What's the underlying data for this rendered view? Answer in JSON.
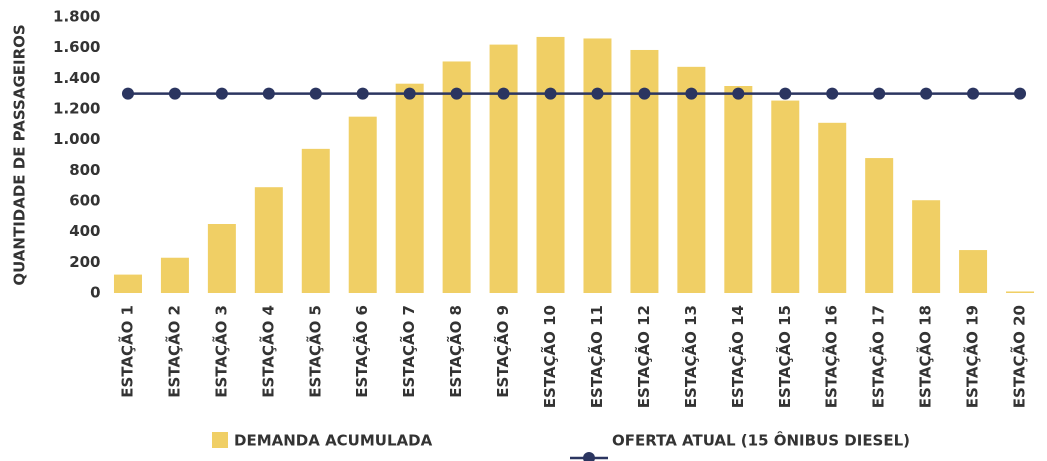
{
  "chart_data": {
    "type": "bar",
    "y_label": "QUANTIDADE DE PASSAGEIROS",
    "categories": [
      "ESTAÇÃO 1",
      "ESTAÇÃO 2",
      "ESTAÇÃO 3",
      "ESTAÇÃO 4",
      "ESTAÇÃO 5",
      "ESTAÇÃO 6",
      "ESTAÇÃO 7",
      "ESTAÇÃO 8",
      "ESTAÇÃO 9",
      "ESTAÇÃO 10",
      "ESTAÇÃO 11",
      "ESTAÇÃO 12",
      "ESTAÇÃO 13",
      "ESTAÇÃO 14",
      "ESTAÇÃO 15",
      "ESTAÇÃO 16",
      "ESTAÇÃO 17",
      "ESTAÇÃO 18",
      "ESTAÇÃO 19",
      "ESTAÇÃO 20"
    ],
    "series": [
      {
        "name": "DEMANDA ACUMULADA",
        "type": "bar",
        "color": "#f0cf65",
        "values": [
          120,
          230,
          450,
          690,
          940,
          1150,
          1365,
          1510,
          1620,
          1670,
          1660,
          1585,
          1475,
          1350,
          1255,
          1110,
          880,
          605,
          280,
          10
        ]
      },
      {
        "name": "OFERTA ATUAL (15 ÔNIBUS DIESEL)",
        "type": "line",
        "color": "#2b3560",
        "values": [
          1300,
          1300,
          1300,
          1300,
          1300,
          1300,
          1300,
          1300,
          1300,
          1300,
          1300,
          1300,
          1300,
          1300,
          1300,
          1300,
          1300,
          1300,
          1300,
          1300
        ]
      }
    ],
    "ylim": [
      0,
      1800
    ],
    "yticks": [
      0,
      200,
      400,
      600,
      800,
      {
        "value": 1000,
        "label": "1.000"
      },
      {
        "value": 1200,
        "label": "1.200"
      },
      {
        "value": 1400,
        "label": "1.400"
      },
      {
        "value": 1600,
        "label": "1.600"
      },
      {
        "value": 1800,
        "label": "1.800"
      }
    ],
    "grid": false,
    "legend": "bottom"
  }
}
